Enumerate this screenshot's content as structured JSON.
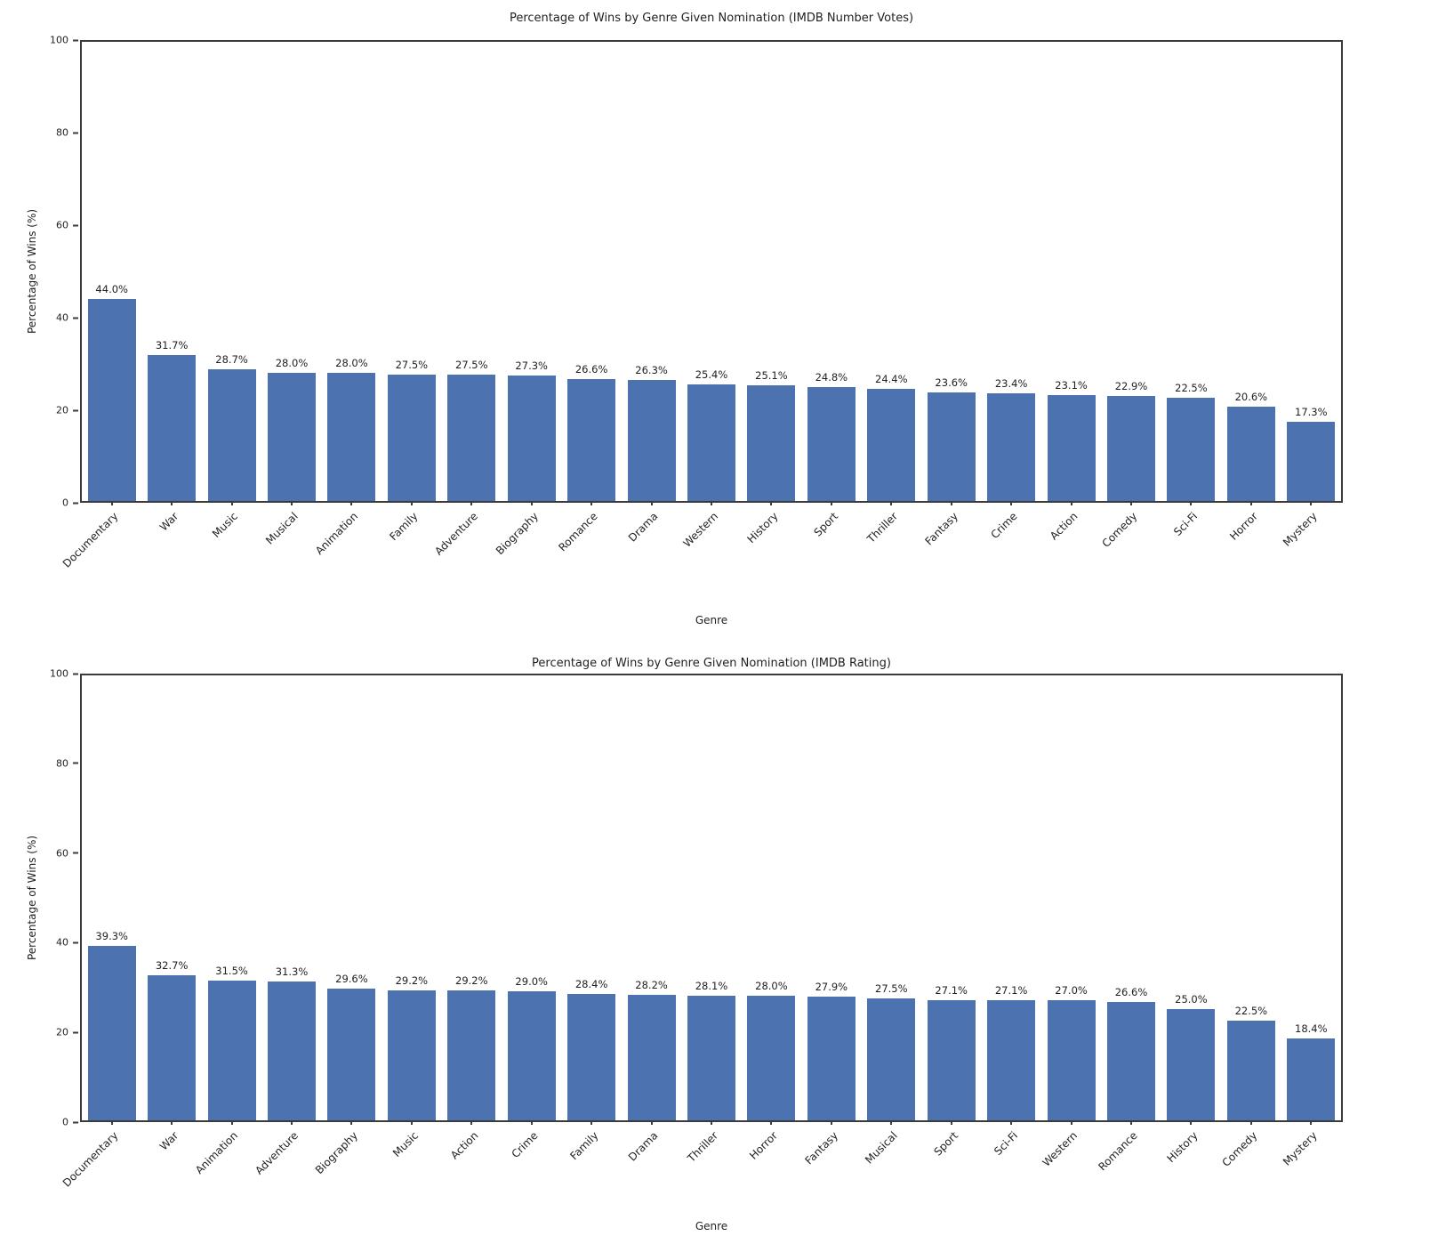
{
  "style": {
    "bar_color": "#4C72B0",
    "spine_color": "#3b3b3b",
    "text_color": "#1f1f1f",
    "background": "#ffffff"
  },
  "chart_data": [
    {
      "type": "bar",
      "title": "Percentage of Wins by Genre Given Nomination (IMDB Number Votes)",
      "xlabel": "Genre",
      "ylabel": "Percentage of Wins (%)",
      "ylim": [
        0,
        100
      ],
      "yticks": [
        0,
        20,
        40,
        60,
        80,
        100
      ],
      "grid": false,
      "legend": "none",
      "categories": [
        "Documentary",
        "War",
        "Music",
        "Musical",
        "Animation",
        "Family",
        "Adventure",
        "Biography",
        "Romance",
        "Drama",
        "Western",
        "History",
        "Sport",
        "Thriller",
        "Fantasy",
        "Crime",
        "Action",
        "Comedy",
        "Sci-Fi",
        "Horror",
        "Mystery"
      ],
      "values": [
        44.0,
        31.7,
        28.7,
        28.0,
        28.0,
        27.5,
        27.5,
        27.3,
        26.6,
        26.3,
        25.4,
        25.1,
        24.8,
        24.4,
        23.6,
        23.4,
        23.1,
        22.9,
        22.5,
        20.6,
        17.3
      ],
      "bar_labels": [
        "44.0%",
        "31.7%",
        "28.7%",
        "28.0%",
        "28.0%",
        "27.5%",
        "27.5%",
        "27.3%",
        "26.6%",
        "26.3%",
        "25.4%",
        "25.1%",
        "24.8%",
        "24.4%",
        "23.6%",
        "23.4%",
        "23.1%",
        "22.9%",
        "22.5%",
        "20.6%",
        "17.3%"
      ]
    },
    {
      "type": "bar",
      "title": "Percentage of Wins by Genre Given Nomination (IMDB Rating)",
      "xlabel": "Genre",
      "ylabel": "Percentage of Wins (%)",
      "ylim": [
        0,
        100
      ],
      "yticks": [
        0,
        20,
        40,
        60,
        80,
        100
      ],
      "grid": false,
      "legend": "none",
      "categories": [
        "Documentary",
        "War",
        "Animation",
        "Adventure",
        "Biography",
        "Music",
        "Action",
        "Crime",
        "Family",
        "Drama",
        "Thriller",
        "Horror",
        "Fantasy",
        "Musical",
        "Sport",
        "Sci-Fi",
        "Western",
        "Romance",
        "History",
        "Comedy",
        "Mystery"
      ],
      "values": [
        39.3,
        32.7,
        31.5,
        31.3,
        29.6,
        29.2,
        29.2,
        29.0,
        28.4,
        28.2,
        28.1,
        28.0,
        27.9,
        27.5,
        27.1,
        27.1,
        27.0,
        26.6,
        25.0,
        22.5,
        18.4
      ],
      "bar_labels": [
        "39.3%",
        "32.7%",
        "31.5%",
        "31.3%",
        "29.6%",
        "29.2%",
        "29.2%",
        "29.0%",
        "28.4%",
        "28.2%",
        "28.1%",
        "28.0%",
        "27.9%",
        "27.5%",
        "27.1%",
        "27.1%",
        "27.0%",
        "26.6%",
        "25.0%",
        "22.5%",
        "18.4%"
      ]
    }
  ]
}
